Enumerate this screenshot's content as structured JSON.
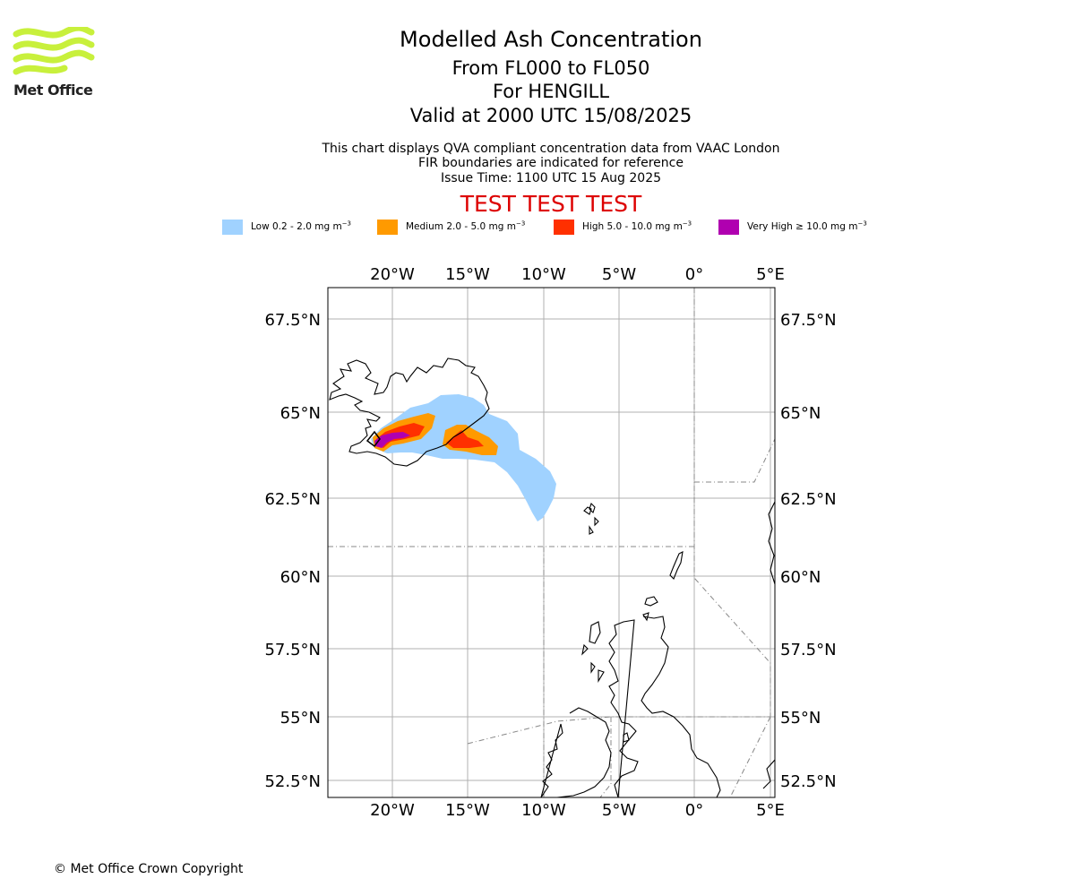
{
  "logo": {
    "brand_text": "Met Office",
    "color": "#c8f03c"
  },
  "header": {
    "title": "Modelled Ash Concentration",
    "flight_levels": "From FL000 to FL050",
    "location": "For HENGILL",
    "valid_time": "Valid at 2000 UTC 15/08/2025",
    "description": "This chart displays QVA compliant concentration data from VAAC London",
    "fir_note": "FIR boundaries are indicated for reference",
    "issue_time": "Issue Time: 1100 UTC 15 Aug 2025",
    "test_banner": "TEST TEST TEST"
  },
  "legend": [
    {
      "label": "Low 0.2 - 2.0 mg m",
      "unit_exp": "−3",
      "color": "#a0d2ff"
    },
    {
      "label": "Medium 2.0 - 5.0 mg m",
      "unit_exp": "−3",
      "color": "#ff9a00"
    },
    {
      "label": "High 5.0 - 10.0 mg m",
      "unit_exp": "−3",
      "color": "#ff3000"
    },
    {
      "label": "Very High ≥ 10.0 mg m",
      "unit_exp": "−3",
      "color": "#b000b0"
    }
  ],
  "map": {
    "lon_labels": [
      "20°W",
      "15°W",
      "10°W",
      "5°W",
      "0°",
      "5°E"
    ],
    "lat_labels": [
      "67.5°N",
      "65°N",
      "62.5°N",
      "60°N",
      "57.5°N",
      "55°N",
      "52.5°N"
    ],
    "colors": {
      "land_outline": "#000000",
      "grid": "#b0b0b0",
      "fir": "#888888"
    }
  },
  "footer": {
    "copyright": "© Met Office Crown Copyright"
  }
}
